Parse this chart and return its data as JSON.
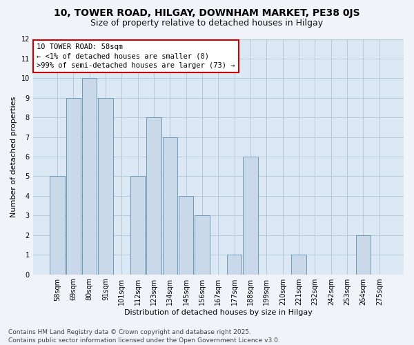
{
  "title_line1": "10, TOWER ROAD, HILGAY, DOWNHAM MARKET, PE38 0JS",
  "title_line2": "Size of property relative to detached houses in Hilgay",
  "xlabel": "Distribution of detached houses by size in Hilgay",
  "ylabel": "Number of detached properties",
  "categories": [
    "58sqm",
    "69sqm",
    "80sqm",
    "91sqm",
    "101sqm",
    "112sqm",
    "123sqm",
    "134sqm",
    "145sqm",
    "156sqm",
    "167sqm",
    "177sqm",
    "188sqm",
    "199sqm",
    "210sqm",
    "221sqm",
    "232sqm",
    "242sqm",
    "253sqm",
    "264sqm",
    "275sqm"
  ],
  "values": [
    5,
    9,
    10,
    9,
    0,
    5,
    8,
    7,
    4,
    3,
    0,
    1,
    6,
    0,
    0,
    1,
    0,
    0,
    0,
    2,
    0
  ],
  "bar_color": "#c9d9ea",
  "bar_edge_color": "#6b9ab8",
  "grid_color": "#aec6d8",
  "background_color": "#dce9f5",
  "fig_background_color": "#f0f4f8",
  "annotation_box_text": "10 TOWER ROAD: 58sqm\n← <1% of detached houses are smaller (0)\n>99% of semi-detached houses are larger (73) →",
  "annotation_box_color": "#ffffff",
  "annotation_box_edge_color": "#cc0000",
  "footer_line1": "Contains HM Land Registry data © Crown copyright and database right 2025.",
  "footer_line2": "Contains public sector information licensed under the Open Government Licence v3.0.",
  "ylim": [
    0,
    12
  ],
  "yticks": [
    0,
    1,
    2,
    3,
    4,
    5,
    6,
    7,
    8,
    9,
    10,
    11,
    12
  ],
  "title_fontsize": 10,
  "subtitle_fontsize": 9,
  "axis_label_fontsize": 8,
  "tick_fontsize": 7,
  "footer_fontsize": 6.5,
  "annotation_fontsize": 7.5
}
